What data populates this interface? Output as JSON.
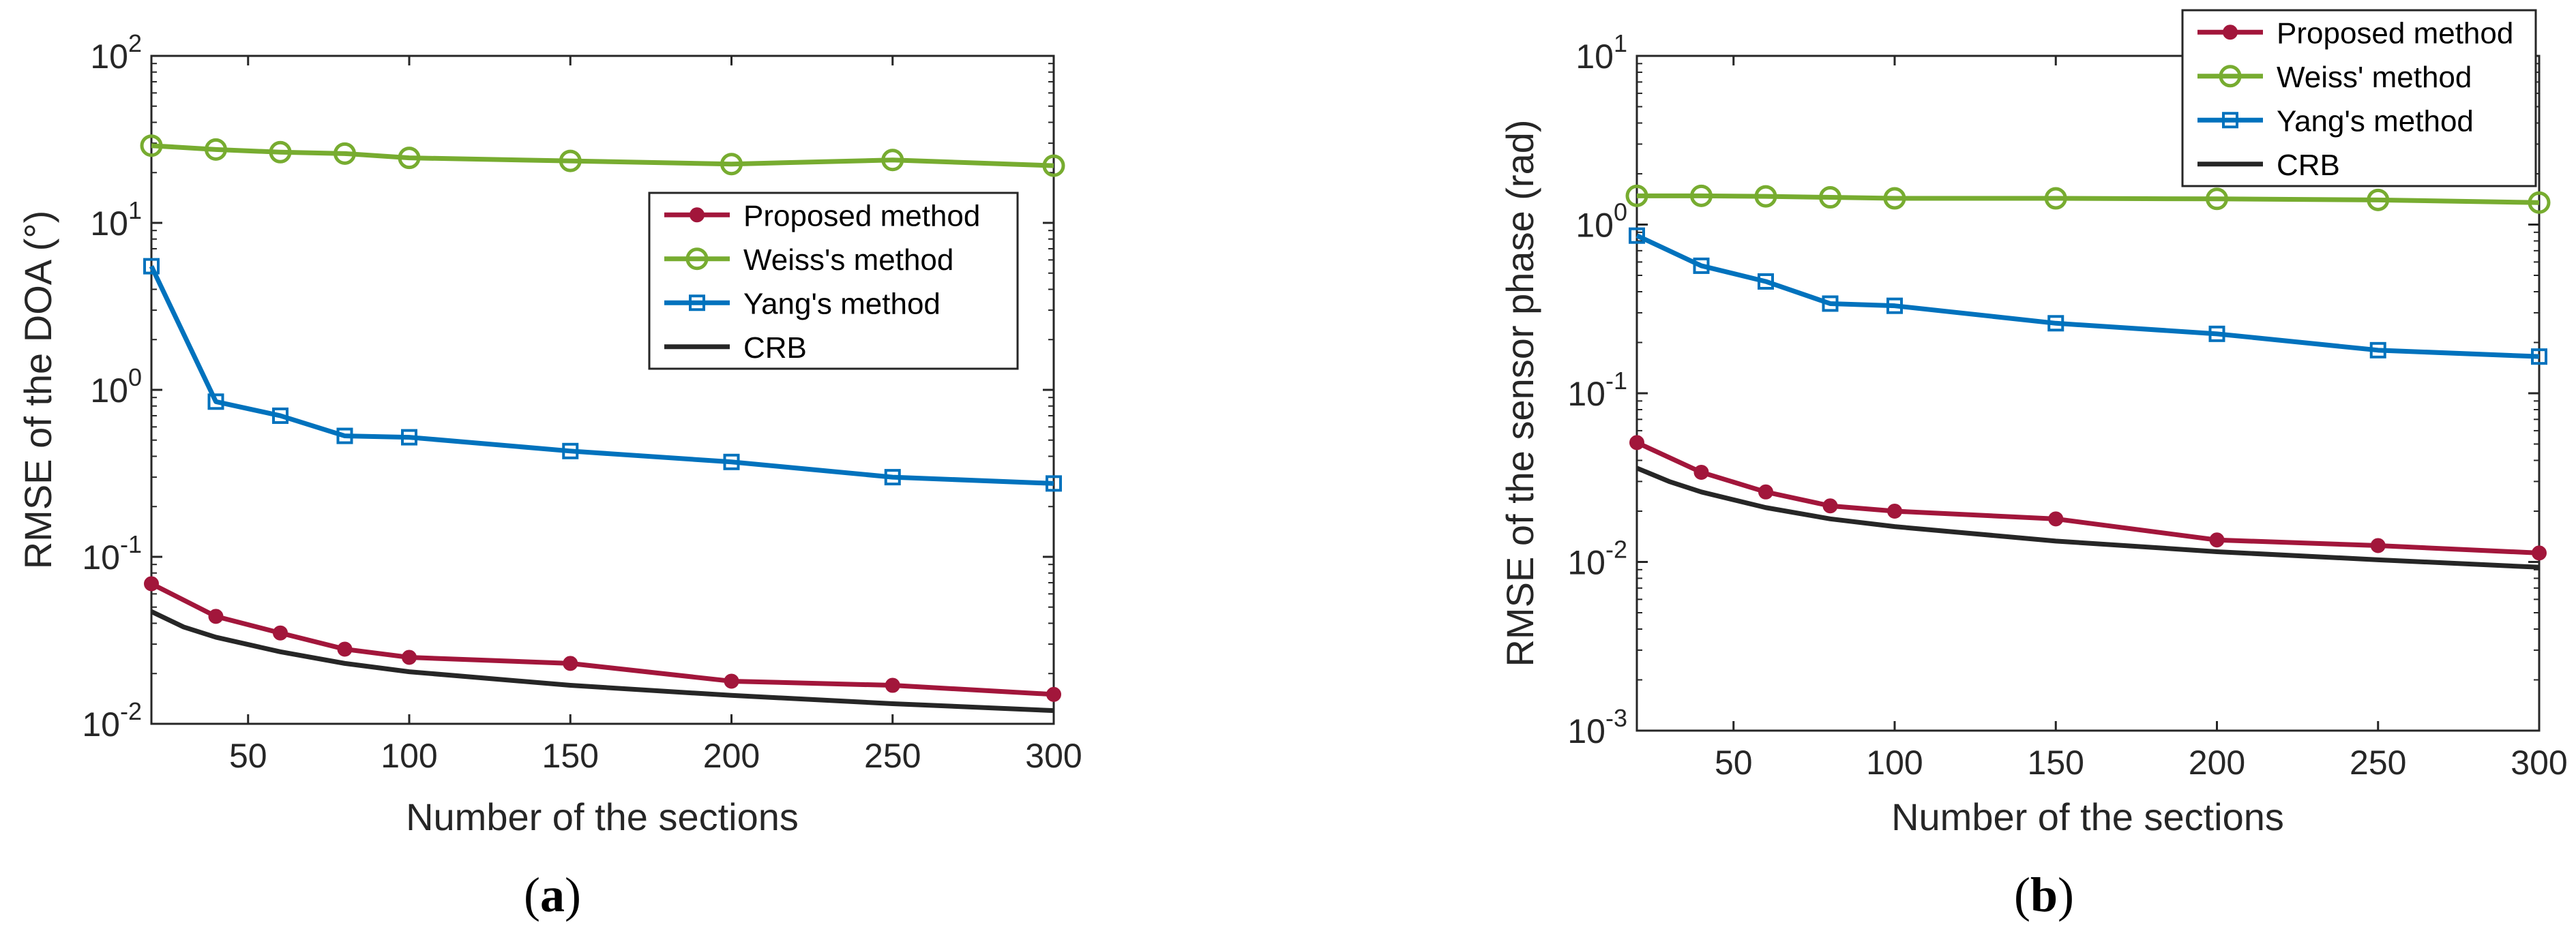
{
  "colors": {
    "proposed": "#A2163B",
    "weiss": "#77AC30",
    "yang": "#0072BD",
    "crb": "#262626",
    "axis": "#262626"
  },
  "chart_data": [
    {
      "type": "line",
      "panel": "a",
      "caption_label": "a",
      "xlabel": "Number of the sections",
      "ylabel": "RMSE of the DOA (°)",
      "yscale": "log",
      "xlim": [
        20,
        300
      ],
      "ylim": [
        0.01,
        100
      ],
      "x_ticks": [
        50,
        100,
        150,
        200,
        250,
        300
      ],
      "x_tick_labels": [
        "50",
        "100",
        "150",
        "200",
        "250",
        "300"
      ],
      "y_ticks": [
        0.01,
        0.1,
        1,
        10,
        100
      ],
      "y_tick_bases": [
        "10",
        "10",
        "10",
        "10",
        "10"
      ],
      "y_tick_exps": [
        "-2",
        "-1",
        "0",
        "1",
        "2"
      ],
      "legend_position": "upper-right-inside",
      "series": [
        {
          "name": "Proposed method",
          "key": "proposed",
          "marker": "dot",
          "x": [
            20,
            40,
            60,
            80,
            100,
            150,
            200,
            250,
            300
          ],
          "y": [
            0.069,
            0.044,
            0.035,
            0.028,
            0.025,
            0.023,
            0.018,
            0.017,
            0.015
          ]
        },
        {
          "name": "Weiss's method",
          "key": "weiss",
          "marker": "circle",
          "x": [
            20,
            40,
            60,
            80,
            100,
            150,
            200,
            250,
            300
          ],
          "y": [
            29,
            27.5,
            26.5,
            26,
            24.5,
            23.5,
            22.5,
            23.8,
            22
          ]
        },
        {
          "name": "Yang's method",
          "key": "yang",
          "marker": "square",
          "x": [
            20,
            40,
            60,
            80,
            100,
            150,
            200,
            250,
            300
          ],
          "y": [
            5.5,
            0.85,
            0.7,
            0.53,
            0.52,
            0.43,
            0.37,
            0.3,
            0.275
          ]
        },
        {
          "name": "CRB",
          "key": "crb",
          "marker": "none",
          "x": [
            20,
            30,
            40,
            60,
            80,
            100,
            150,
            200,
            250,
            300
          ],
          "y": [
            0.047,
            0.038,
            0.033,
            0.027,
            0.023,
            0.0205,
            0.017,
            0.0148,
            0.0132,
            0.012
          ]
        }
      ]
    },
    {
      "type": "line",
      "panel": "b",
      "caption_label": "b",
      "xlabel": "Number of the sections",
      "ylabel": "RMSE of the sensor phase (rad)",
      "yscale": "log",
      "xlim": [
        20,
        300
      ],
      "ylim": [
        0.001,
        10
      ],
      "x_ticks": [
        50,
        100,
        150,
        200,
        250,
        300
      ],
      "x_tick_labels": [
        "50",
        "100",
        "150",
        "200",
        "250",
        "300"
      ],
      "y_ticks": [
        0.001,
        0.01,
        0.1,
        1,
        10
      ],
      "y_tick_bases": [
        "10",
        "10",
        "10",
        "10",
        "10"
      ],
      "y_tick_exps": [
        "-3",
        "-2",
        "-1",
        "0",
        "1"
      ],
      "legend_position": "top-right",
      "series": [
        {
          "name": "Proposed method",
          "key": "proposed",
          "marker": "dot",
          "x": [
            20,
            40,
            60,
            80,
            100,
            150,
            200,
            250,
            300
          ],
          "y": [
            0.051,
            0.034,
            0.026,
            0.0215,
            0.02,
            0.018,
            0.0135,
            0.0125,
            0.0113
          ]
        },
        {
          "name": "Weiss' method",
          "key": "weiss",
          "marker": "circle",
          "x": [
            20,
            40,
            60,
            80,
            100,
            150,
            200,
            250,
            300
          ],
          "y": [
            1.48,
            1.48,
            1.47,
            1.45,
            1.43,
            1.43,
            1.42,
            1.4,
            1.35
          ]
        },
        {
          "name": "Yang's method",
          "key": "yang",
          "marker": "square",
          "x": [
            20,
            40,
            60,
            80,
            100,
            150,
            200,
            250,
            300
          ],
          "y": [
            0.86,
            0.57,
            0.46,
            0.34,
            0.33,
            0.26,
            0.225,
            0.18,
            0.165
          ]
        },
        {
          "name": "CRB",
          "key": "crb",
          "marker": "none",
          "x": [
            20,
            30,
            40,
            60,
            80,
            100,
            150,
            200,
            250,
            300
          ],
          "y": [
            0.036,
            0.03,
            0.026,
            0.021,
            0.018,
            0.0162,
            0.0133,
            0.0115,
            0.0103,
            0.0093
          ]
        }
      ]
    }
  ]
}
